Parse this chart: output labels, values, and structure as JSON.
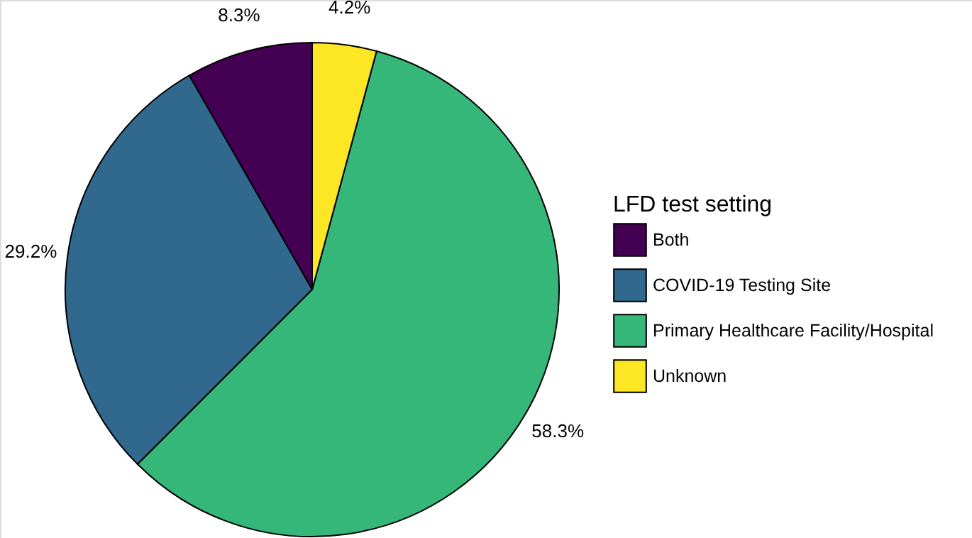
{
  "chart_data": {
    "type": "pie",
    "legend_title": "LFD test setting",
    "categories": [
      "Both",
      "COVID-19 Testing Site",
      "Primary Healthcare Facility/Hospital",
      "Unknown"
    ],
    "values": [
      8.3,
      29.2,
      58.3,
      4.2
    ],
    "colors": [
      "#440154",
      "#31688e",
      "#35b779",
      "#fde725"
    ],
    "value_labels": [
      "8.3%",
      "29.2%",
      "58.3%",
      "4.2%"
    ],
    "legend": "right"
  }
}
